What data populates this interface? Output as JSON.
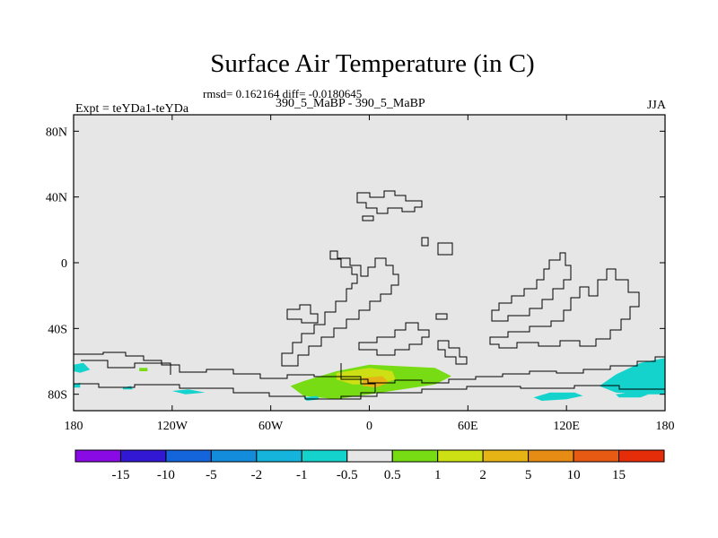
{
  "chart_data": {
    "type": "heatmap",
    "title": "Surface Air Temperature (in C)",
    "subtitle_stats": "rmsd= 0.162164 diff= -0.0180645",
    "subtitle_case": "390_5_MaBP - 390_5_MaBP",
    "left_label": "Expt = teYDa1-teYDa",
    "right_label": "JJA",
    "projection": "lat-lon",
    "xlim": [
      -180,
      180
    ],
    "ylim": [
      -90,
      90
    ],
    "x_ticks": [
      {
        "value": -180,
        "label": "180"
      },
      {
        "value": -120,
        "label": "120W"
      },
      {
        "value": -60,
        "label": "60W"
      },
      {
        "value": 0,
        "label": "0"
      },
      {
        "value": 60,
        "label": "60E"
      },
      {
        "value": 120,
        "label": "120E"
      },
      {
        "value": 180,
        "label": "180"
      }
    ],
    "y_ticks": [
      {
        "value": 80,
        "label": "80N"
      },
      {
        "value": 40,
        "label": "40N"
      },
      {
        "value": 0,
        "label": "0"
      },
      {
        "value": -40,
        "label": "40S"
      },
      {
        "value": -80,
        "label": "80S"
      }
    ],
    "colorbar": {
      "labels": [
        "-15",
        "-10",
        "-5",
        "-2",
        "-1",
        "-0.5",
        "0.5",
        "1",
        "2",
        "5",
        "10",
        "15"
      ],
      "colors": [
        "#8a0ae6",
        "#3218d2",
        "#1464dc",
        "#148cdc",
        "#14b4dc",
        "#14d2cc",
        "#e6e6e6",
        "#78dc14",
        "#cce014",
        "#e6b414",
        "#e68c14",
        "#e65a14",
        "#e62d0a"
      ]
    },
    "colors": {
      "background": "#e6e6e6",
      "coast": "#000000"
    },
    "anomaly_regions": [
      {
        "class": "0.5 to 1",
        "color": "#78dc14",
        "polygon": [
          [
            -40,
            -72
          ],
          [
            -20,
            -66
          ],
          [
            0,
            -62
          ],
          [
            20,
            -63
          ],
          [
            40,
            -64
          ],
          [
            50,
            -69
          ],
          [
            40,
            -74
          ],
          [
            20,
            -77
          ],
          [
            0,
            -80
          ],
          [
            -20,
            -83
          ],
          [
            -40,
            -81
          ],
          [
            -48,
            -75
          ]
        ]
      },
      {
        "class": "1 to 2",
        "color": "#cce014",
        "polygon": [
          [
            -20,
            -67
          ],
          [
            0,
            -64
          ],
          [
            14,
            -66
          ],
          [
            16,
            -71
          ],
          [
            4,
            -74
          ],
          [
            -10,
            -74
          ],
          [
            -20,
            -71
          ]
        ]
      },
      {
        "class": "2 to 5",
        "color": "#e6b414",
        "polygon": [
          [
            -4,
            -70
          ],
          [
            8,
            -69
          ],
          [
            12,
            -73
          ],
          [
            4,
            -76
          ],
          [
            -4,
            -75
          ]
        ]
      },
      {
        "class": "-1 to -0.5",
        "color": "#14d2cc",
        "polygon": [
          [
            140,
            -75
          ],
          [
            150,
            -68
          ],
          [
            165,
            -61
          ],
          [
            180,
            -58
          ],
          [
            180,
            -80
          ],
          [
            165,
            -80
          ],
          [
            150,
            -79
          ]
        ]
      },
      {
        "class": "-1 to -0.5",
        "color": "#14d2cc",
        "polygon": [
          [
            100,
            -82
          ],
          [
            110,
            -79
          ],
          [
            125,
            -79
          ],
          [
            130,
            -81
          ],
          [
            120,
            -83
          ],
          [
            105,
            -84
          ]
        ]
      },
      {
        "class": "-1 to -0.5",
        "color": "#14d2cc",
        "polygon": [
          [
            150,
            -80
          ],
          [
            160,
            -79
          ],
          [
            170,
            -80
          ],
          [
            165,
            -82
          ],
          [
            152,
            -82
          ]
        ]
      },
      {
        "class": "-1 to -0.5",
        "color": "#14d2cc",
        "polygon": [
          [
            -180,
            -62
          ],
          [
            -174,
            -61
          ],
          [
            -170,
            -65
          ],
          [
            -176,
            -67
          ],
          [
            -180,
            -66
          ]
        ]
      },
      {
        "class": "-1 to -0.5",
        "color": "#14d2cc",
        "polygon": [
          [
            -180,
            -74
          ],
          [
            -176,
            -73
          ],
          [
            -176,
            -76
          ],
          [
            -180,
            -76
          ]
        ]
      },
      {
        "class": "-1 to -0.5",
        "color": "#14d2cc",
        "polygon": [
          [
            -120,
            -78
          ],
          [
            -110,
            -77
          ],
          [
            -100,
            -79
          ],
          [
            -112,
            -80
          ]
        ]
      },
      {
        "class": "-1 to -0.5",
        "color": "#14d2cc",
        "polygon": [
          [
            -150,
            -76
          ],
          [
            -145,
            -75
          ],
          [
            -144,
            -77
          ],
          [
            -150,
            -77
          ]
        ]
      },
      {
        "class": "-1 to -0.5",
        "color": "#14d2cc",
        "polygon": [
          [
            -40,
            -82
          ],
          [
            -32,
            -81
          ],
          [
            -30,
            -83
          ],
          [
            -38,
            -84
          ]
        ]
      },
      {
        "class": "0.5 to 1",
        "color": "#78dc14",
        "polygon": [
          [
            -140,
            -64
          ],
          [
            -135,
            -64
          ],
          [
            -135,
            -66
          ],
          [
            -140,
            -66
          ]
        ]
      }
    ]
  }
}
